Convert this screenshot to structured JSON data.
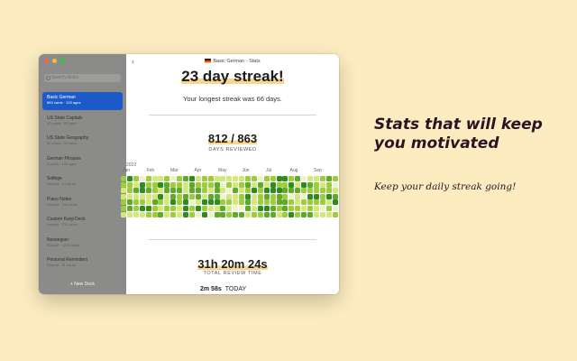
{
  "window": {
    "title": "Basic German - Stats",
    "back_icon": "chevron-left-icon",
    "traffic_colors": [
      "#ff5f57",
      "#febc2e",
      "#28c840"
    ]
  },
  "sidebar": {
    "search_placeholder": "Search decks",
    "decks": [
      {
        "title": "Basic German",
        "subtitle": "863 cards · 100 ages",
        "flag": "de",
        "selected": true
      },
      {
        "title": "US State Capitals",
        "subtitle": "50 cards · 50 ages",
        "flag": "us"
      },
      {
        "title": "US State Geography",
        "subtitle": "50 cards · 50 ages",
        "flag": "us"
      },
      {
        "title": "German Phrases",
        "subtitle": "2 cards · 150 ages",
        "flag": "de"
      },
      {
        "title": "Solfege",
        "subtitle": "Repeat · 14 cards"
      },
      {
        "title": "Piano Notes",
        "subtitle": "Repeat · 108 cards"
      },
      {
        "title": "Custom Kanji Deck",
        "subtitle": "Repeat · 131 cards"
      },
      {
        "title": "Norwegian",
        "subtitle": "Repeat · 1223 cards"
      },
      {
        "title": "Personal Reminders",
        "subtitle": "Repeat · 31 cards"
      }
    ],
    "new_deck_label": "+ New Deck"
  },
  "stats": {
    "streak_headline": "23 day streak!",
    "longest_streak": "Your longest streak was 66 days.",
    "reviewed": "812 / 863",
    "reviewed_caption": "DAYS REVIEWED",
    "year_label": "2022",
    "months": [
      "Jan",
      "Feb",
      "Mar",
      "Apr",
      "May",
      "Jun",
      "Jul",
      "Aug",
      "Sep"
    ],
    "total_time": "31h 20m 24s",
    "total_time_caption": "TOTAL REVIEW TIME",
    "today_value": "2m 58s",
    "today_label": "TODAY"
  },
  "heatmap_colors": [
    "#eef3cf",
    "#d3e87a",
    "#9dcc3c",
    "#5faa2c",
    "#2f8a22"
  ],
  "promo": {
    "headline": "Stats that will keep you motivated",
    "subtitle": "Keep your daily streak going!"
  }
}
